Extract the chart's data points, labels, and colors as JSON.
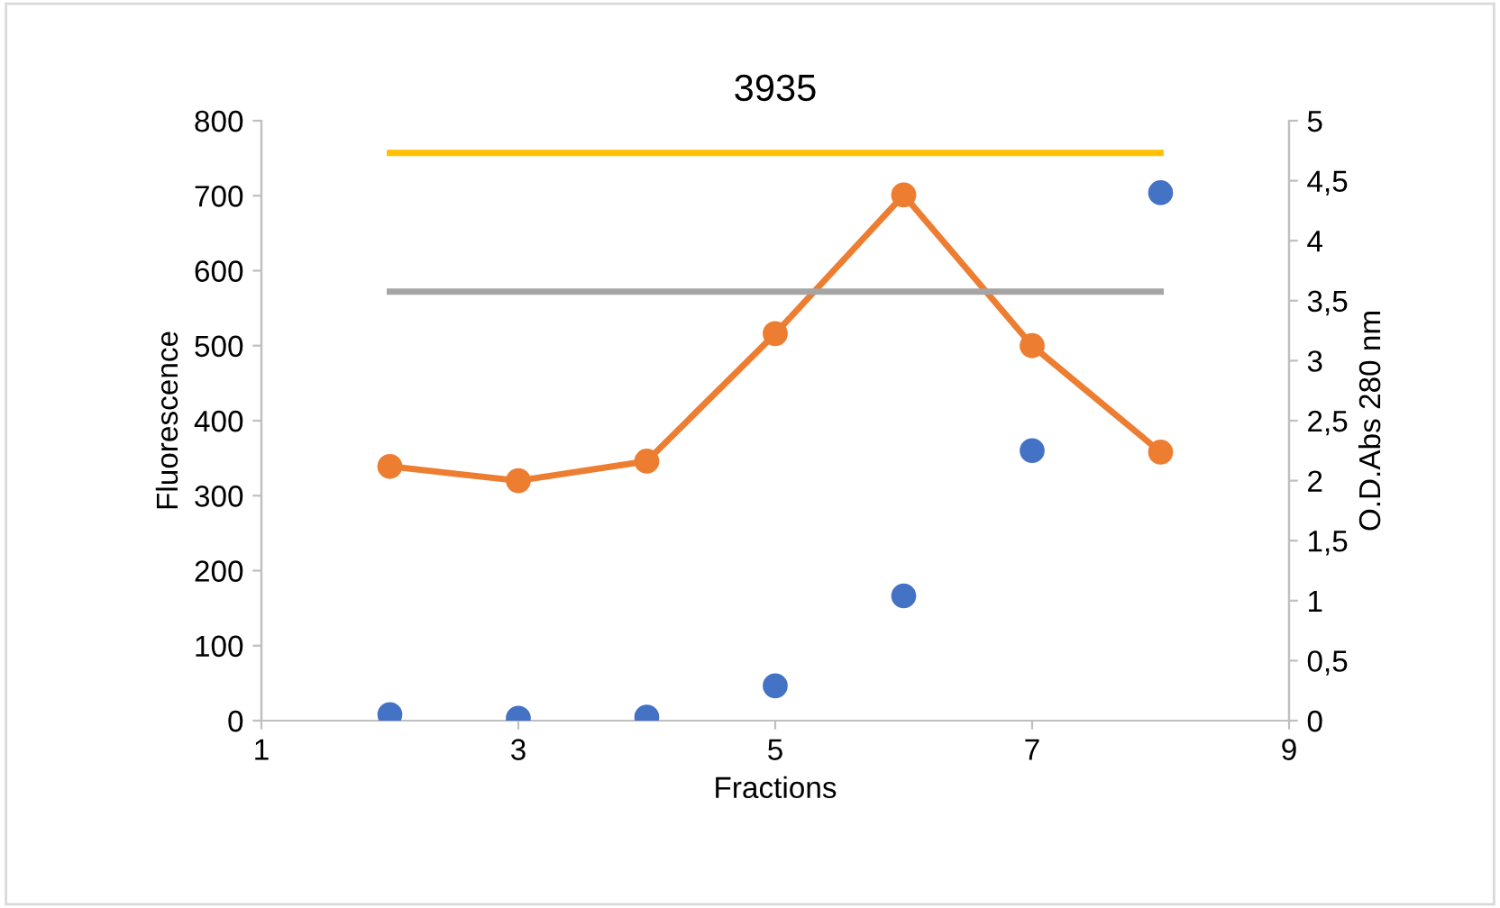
{
  "chart_data": {
    "type": "line",
    "title": "3935",
    "xlabel": "Fractions",
    "ylabel": "Fluorescence",
    "y2label": "O.D.Abs 280 nm",
    "xlim": [
      1,
      9
    ],
    "xticks": [
      1,
      3,
      5,
      7,
      9
    ],
    "ylim": [
      0,
      800
    ],
    "yticks": [
      0,
      100,
      200,
      300,
      400,
      500,
      600,
      700,
      800
    ],
    "y2lim": [
      0,
      5
    ],
    "y2ticks": [
      0,
      {
        "value": 0.5,
        "label": "0,5"
      },
      1,
      {
        "value": 1.5,
        "label": "1,5"
      },
      2,
      {
        "value": 2.5,
        "label": "2,5"
      },
      3,
      {
        "value": 3.5,
        "label": "3,5"
      },
      4,
      {
        "value": 4.5,
        "label": "4,5"
      },
      5
    ],
    "grid": false,
    "legend": false,
    "series": [
      {
        "color": "#ed7d31",
        "marker": "circle",
        "x": [
          2,
          3,
          4,
          5,
          6,
          7,
          8
        ],
        "values": [
          339,
          320,
          346,
          516,
          701,
          500,
          358
        ]
      },
      {
        "type": "scatter",
        "axis": "y2",
        "color": "#4472c4",
        "marker": "circle",
        "x": [
          2,
          3,
          4,
          5,
          6,
          7,
          8
        ],
        "values": [
          0.05,
          0.02,
          0.03,
          0.29,
          1.04,
          2.25,
          4.4
        ]
      },
      {
        "color": "#ffc000",
        "marker": "none",
        "x": [
          2,
          8
        ],
        "values": [
          757,
          757
        ]
      },
      {
        "color": "#a5a5a5",
        "marker": "none",
        "x": [
          2,
          8
        ],
        "values": [
          572,
          572
        ]
      }
    ]
  }
}
